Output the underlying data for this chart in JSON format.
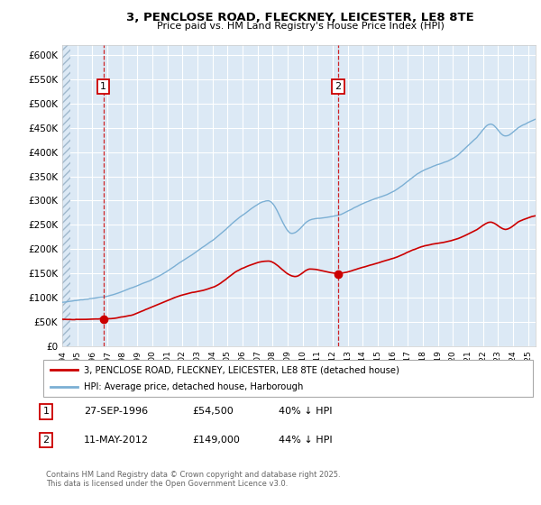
{
  "title": "3, PENCLOSE ROAD, FLECKNEY, LEICESTER, LE8 8TE",
  "subtitle": "Price paid vs. HM Land Registry's House Price Index (HPI)",
  "ylabel_ticks": [
    "£0",
    "£50K",
    "£100K",
    "£150K",
    "£200K",
    "£250K",
    "£300K",
    "£350K",
    "£400K",
    "£450K",
    "£500K",
    "£550K",
    "£600K"
  ],
  "ylim": [
    0,
    620000
  ],
  "xlim_start": 1994.0,
  "xlim_end": 2025.5,
  "transaction1_x": 1996.74,
  "transaction1_y": 54500,
  "transaction2_x": 2012.36,
  "transaction2_y": 149000,
  "transaction1_date": "27-SEP-1996",
  "transaction1_price": "£54,500",
  "transaction1_hpi": "40% ↓ HPI",
  "transaction2_date": "11-MAY-2012",
  "transaction2_price": "£149,000",
  "transaction2_hpi": "44% ↓ HPI",
  "line_color_property": "#cc0000",
  "line_color_hpi": "#7bafd4",
  "background_color": "#dce9f5",
  "grid_color": "#ffffff",
  "legend_label_property": "3, PENCLOSE ROAD, FLECKNEY, LEICESTER, LE8 8TE (detached house)",
  "legend_label_hpi": "HPI: Average price, detached house, Harborough",
  "footer": "Contains HM Land Registry data © Crown copyright and database right 2025.\nThis data is licensed under the Open Government Licence v3.0.",
  "hatch_color": "#b0c4d8"
}
